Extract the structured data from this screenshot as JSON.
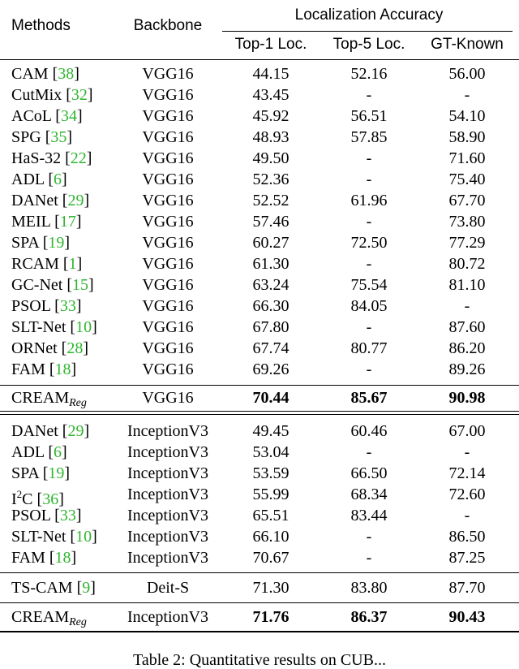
{
  "header": {
    "methods": "Methods",
    "backbone": "Backbone",
    "group": "Localization Accuracy",
    "top1": "Top-1 Loc.",
    "top5": "Top-5 Loc.",
    "gtk": "GT-Known"
  },
  "vgg_rows": [
    {
      "name": "CAM",
      "cite": "38",
      "backbone": "VGG16",
      "top1": "44.15",
      "top5": "52.16",
      "gtk": "56.00"
    },
    {
      "name": "CutMix",
      "cite": "32",
      "backbone": "VGG16",
      "top1": "43.45",
      "top5": "-",
      "gtk": "-"
    },
    {
      "name": "ACoL",
      "cite": "34",
      "backbone": "VGG16",
      "top1": "45.92",
      "top5": "56.51",
      "gtk": "54.10"
    },
    {
      "name": "SPG",
      "cite": "35",
      "backbone": "VGG16",
      "top1": "48.93",
      "top5": "57.85",
      "gtk": "58.90"
    },
    {
      "name": "HaS-32",
      "cite": "22",
      "backbone": "VGG16",
      "top1": "49.50",
      "top5": "-",
      "gtk": "71.60"
    },
    {
      "name": "ADL",
      "cite": "6",
      "backbone": "VGG16",
      "top1": "52.36",
      "top5": "-",
      "gtk": "75.40"
    },
    {
      "name": "DANet",
      "cite": "29",
      "backbone": "VGG16",
      "top1": "52.52",
      "top5": "61.96",
      "gtk": "67.70"
    },
    {
      "name": "MEIL",
      "cite": "17",
      "backbone": "VGG16",
      "top1": "57.46",
      "top5": "-",
      "gtk": "73.80"
    },
    {
      "name": "SPA",
      "cite": "19",
      "backbone": "VGG16",
      "top1": "60.27",
      "top5": "72.50",
      "gtk": "77.29"
    },
    {
      "name": "RCAM",
      "cite": "1",
      "backbone": "VGG16",
      "top1": "61.30",
      "top5": "-",
      "gtk": "80.72"
    },
    {
      "name": "GC-Net",
      "cite": "15",
      "backbone": "VGG16",
      "top1": "63.24",
      "top5": "75.54",
      "gtk": "81.10"
    },
    {
      "name": "PSOL",
      "cite": "33",
      "backbone": "VGG16",
      "top1": "66.30",
      "top5": "84.05",
      "gtk": "-"
    },
    {
      "name": "SLT-Net",
      "cite": "10",
      "backbone": "VGG16",
      "top1": "67.80",
      "top5": "-",
      "gtk": "87.60"
    },
    {
      "name": "ORNet",
      "cite": "28",
      "backbone": "VGG16",
      "top1": "67.74",
      "top5": "80.77",
      "gtk": "86.20"
    },
    {
      "name": "FAM",
      "cite": "18",
      "backbone": "VGG16",
      "top1": "69.26",
      "top5": "-",
      "gtk": "89.26"
    }
  ],
  "cream_vgg": {
    "name": "CREAM",
    "sub": "Reg",
    "backbone": "VGG16",
    "top1": "70.44",
    "top5": "85.67",
    "gtk": "90.98"
  },
  "inc_rows": [
    {
      "name": "DANet",
      "cite": "29",
      "backbone": "InceptionV3",
      "top1": "49.45",
      "top5": "60.46",
      "gtk": "67.00"
    },
    {
      "name": "ADL",
      "cite": "6",
      "backbone": "InceptionV3",
      "top1": "53.04",
      "top5": "-",
      "gtk": "-"
    },
    {
      "name": "SPA",
      "cite": "19",
      "backbone": "InceptionV3",
      "top1": "53.59",
      "top5": "66.50",
      "gtk": "72.14"
    },
    {
      "name": "I",
      "sup": "2",
      "name_tail": "C",
      "cite": "36",
      "backbone": "InceptionV3",
      "top1": "55.99",
      "top5": "68.34",
      "gtk": "72.60"
    },
    {
      "name": "PSOL",
      "cite": "33",
      "backbone": "InceptionV3",
      "top1": "65.51",
      "top5": "83.44",
      "gtk": "-"
    },
    {
      "name": "SLT-Net",
      "cite": "10",
      "backbone": "InceptionV3",
      "top1": "66.10",
      "top5": "-",
      "gtk": "86.50"
    },
    {
      "name": "FAM",
      "cite": "18",
      "backbone": "InceptionV3",
      "top1": "70.67",
      "top5": "-",
      "gtk": "87.25"
    }
  ],
  "tscam": {
    "name": "TS-CAM",
    "cite": "9",
    "backbone": "Deit-S",
    "top1": "71.30",
    "top5": "83.80",
    "gtk": "87.70"
  },
  "cream_inc": {
    "name": "CREAM",
    "sub": "Reg",
    "backbone": "InceptionV3",
    "top1": "71.76",
    "top5": "86.37",
    "gtk": "90.43"
  },
  "caption": "Table 2: Quantitative results on CUB..."
}
